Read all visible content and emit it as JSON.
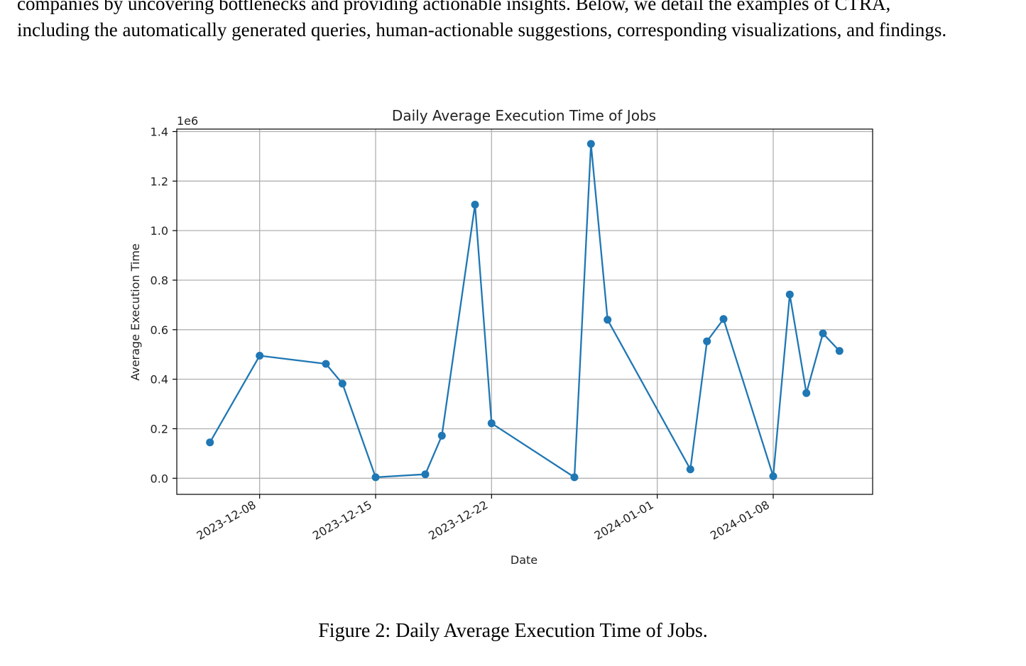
{
  "paragraph": {
    "line1": "companies by uncovering bottlenecks and providing actionable insights. Below, we detail the examples of CTRA,",
    "line2": "including the automatically generated queries, human-actionable suggestions, corresponding visualizations, and findings."
  },
  "figure": {
    "caption": "Figure 2: Daily Average Execution Time of Jobs."
  },
  "colors": {
    "series": "#1f77b4",
    "grid": "#b0b0b0",
    "axis": "#000000"
  },
  "chart_data": {
    "type": "line",
    "title": "Daily Average Execution Time of Jobs",
    "xlabel": "Date",
    "ylabel": "Average Execution Time",
    "y_offset_label": "1e6",
    "grid": true,
    "marker": "circle",
    "xlim": [
      "2023-12-03",
      "2024-01-14"
    ],
    "ylim": [
      -0.065,
      1.41
    ],
    "x_ticks": [
      "2023-12-08",
      "2023-12-15",
      "2023-12-22",
      "2024-01-01",
      "2024-01-08"
    ],
    "y_ticks": [
      0.0,
      0.2,
      0.4,
      0.6,
      0.8,
      1.0,
      1.2,
      1.4
    ],
    "y_tick_labels": [
      "0.0",
      "0.2",
      "0.4",
      "0.6",
      "0.8",
      "1.0",
      "1.2",
      "1.4"
    ],
    "series": [
      {
        "x": [
          "2023-12-05",
          "2023-12-08",
          "2023-12-12",
          "2023-12-13",
          "2023-12-15",
          "2023-12-18",
          "2023-12-19",
          "2023-12-21",
          "2023-12-22",
          "2023-12-27",
          "2023-12-28",
          "2023-12-29",
          "2024-01-03",
          "2024-01-04",
          "2024-01-05",
          "2024-01-08",
          "2024-01-09",
          "2024-01-10",
          "2024-01-11",
          "2024-01-12"
        ],
        "y": [
          0.145,
          0.495,
          0.462,
          0.382,
          0.004,
          0.016,
          0.172,
          1.105,
          0.222,
          0.004,
          1.35,
          0.64,
          0.036,
          0.553,
          0.643,
          0.008,
          0.742,
          0.344,
          0.585,
          0.514
        ]
      }
    ]
  }
}
